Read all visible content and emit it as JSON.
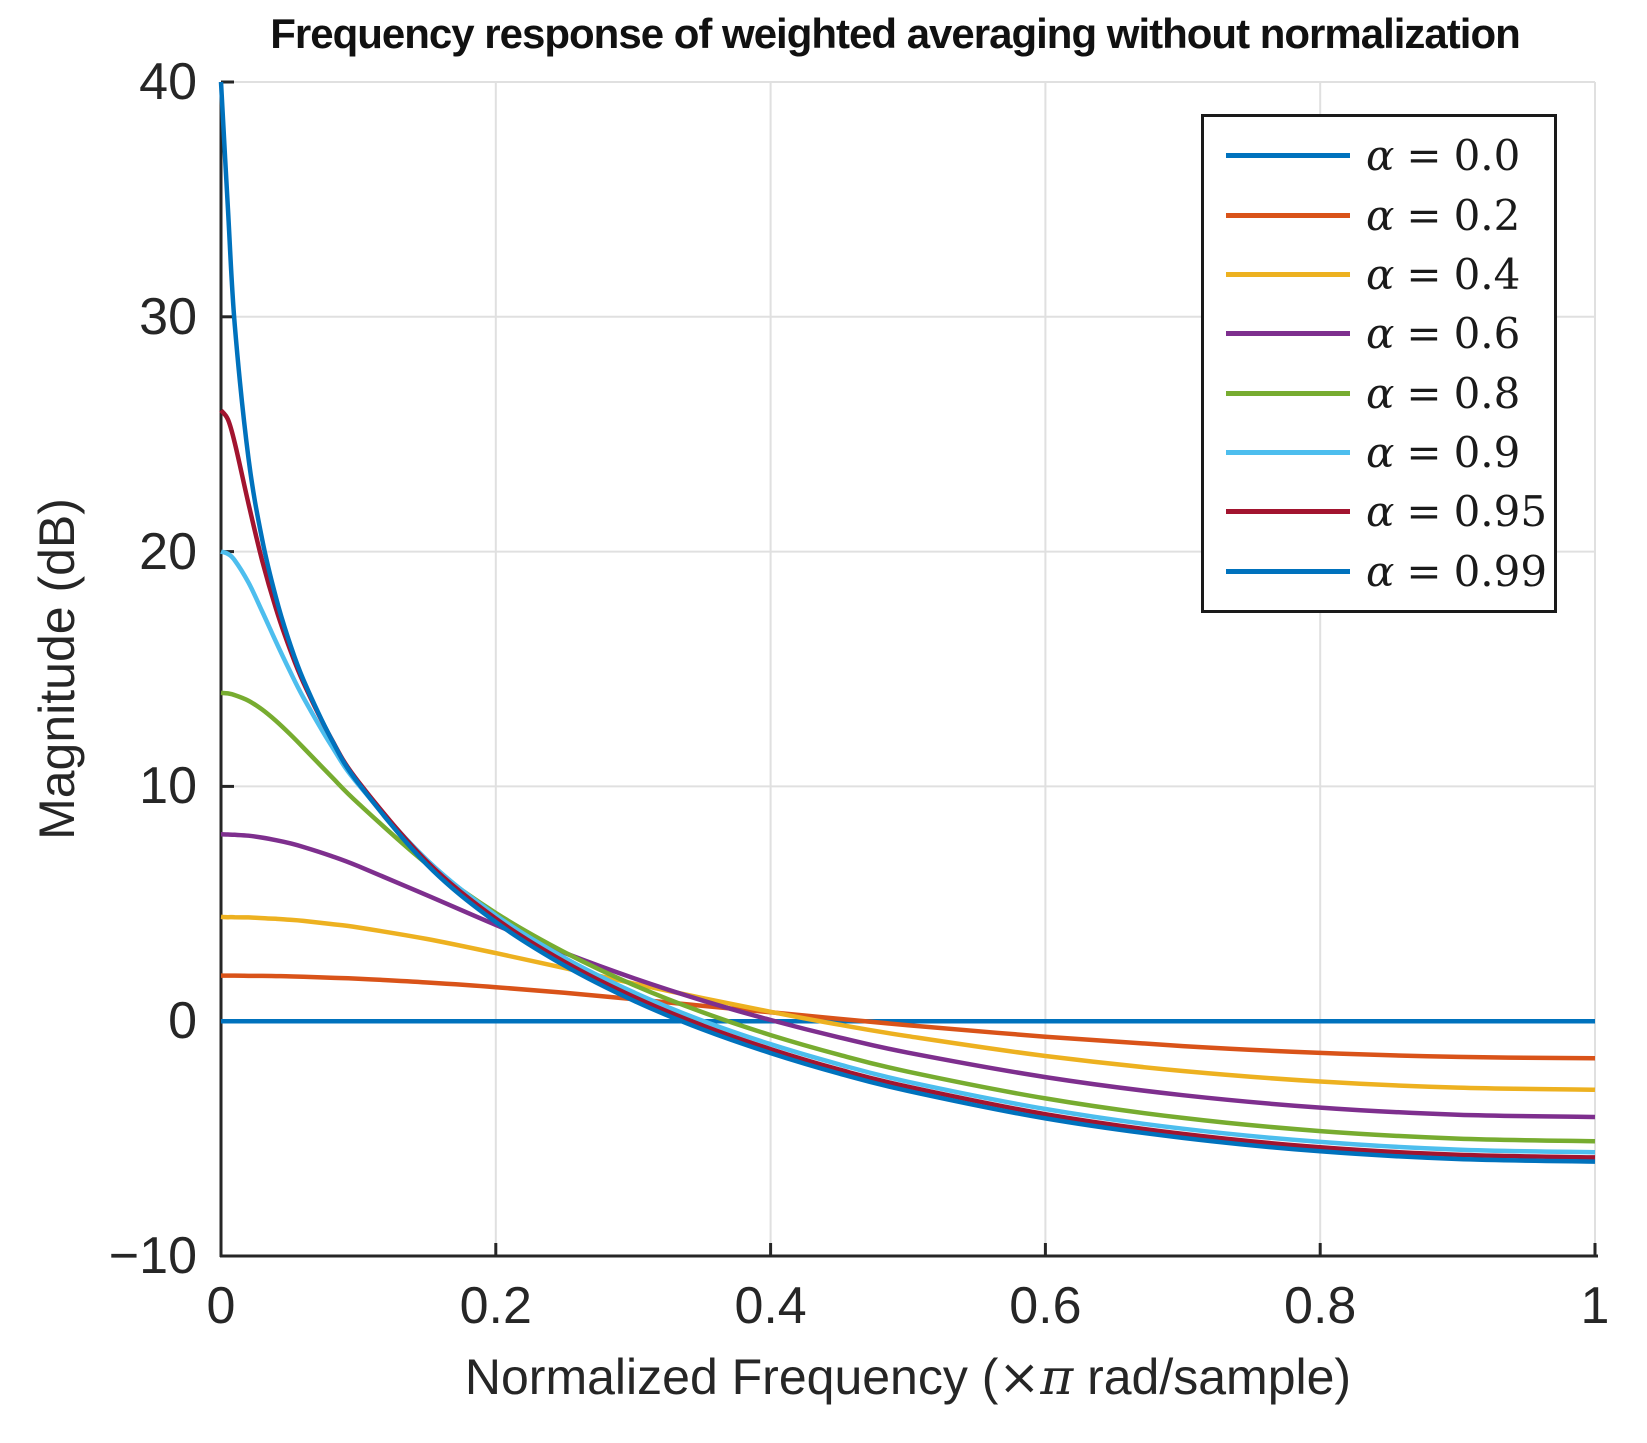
{
  "title": "Frequency response of weighted averaging without normalization",
  "axis": {
    "ylabel": "Magnitude (dB)",
    "xlabel_prefix": "Normalized Frequency (",
    "xlabel_times": "×",
    "xlabel_pi": "π",
    "xlabel_suffix": " rad/sample)",
    "x_tick_labels": [
      "0",
      "0.2",
      "0.4",
      "0.6",
      "0.8",
      "1"
    ],
    "y_tick_labels": [
      "−10",
      "0",
      "10",
      "20",
      "30",
      "40"
    ]
  },
  "legend": {
    "symbol": "α",
    "equals": "="
  },
  "style_colors": {
    "axis": "#262626",
    "grid": "#e0e0e0",
    "text": "#262626",
    "legend_border": "#1a1a1a"
  },
  "chart_data": {
    "type": "line",
    "title": "Frequency response of weighted averaging without normalization",
    "xlabel": "Normalized Frequency (×π rad/sample)",
    "ylabel": "Magnitude (dB)",
    "xlim": [
      0,
      1
    ],
    "ylim": [
      -10,
      40
    ],
    "x_ticks": [
      0,
      0.2,
      0.4,
      0.6,
      0.8,
      1
    ],
    "y_ticks": [
      -10,
      0,
      10,
      20,
      30,
      40
    ],
    "grid": "on",
    "legend_position": "top-right",
    "x": [
      0,
      0.005,
      0.01,
      0.02,
      0.03,
      0.04,
      0.05,
      0.06,
      0.08,
      0.1,
      0.15,
      0.2,
      0.25,
      0.3,
      0.35,
      0.4,
      0.45,
      0.5,
      0.6,
      0.7,
      0.8,
      0.9,
      1.0
    ],
    "series": [
      {
        "alpha": "0.0",
        "color": "#0072BD",
        "values": [
          0,
          0,
          0,
          0,
          0,
          0,
          0,
          0,
          0,
          0,
          0,
          0,
          0,
          0,
          0,
          0,
          0,
          0,
          0,
          0,
          0,
          0,
          0
        ]
      },
      {
        "alpha": "0.2",
        "color": "#D95319",
        "values": [
          1.94,
          1.94,
          1.94,
          1.93,
          1.93,
          1.92,
          1.91,
          1.89,
          1.85,
          1.81,
          1.65,
          1.45,
          1.21,
          0.94,
          0.66,
          0.38,
          0.1,
          -0.17,
          -0.66,
          -1.06,
          -1.35,
          -1.52,
          -1.58
        ]
      },
      {
        "alpha": "0.4",
        "color": "#EDB120",
        "values": [
          4.44,
          4.43,
          4.43,
          4.42,
          4.39,
          4.36,
          4.32,
          4.27,
          4.14,
          3.99,
          3.5,
          2.9,
          2.26,
          1.61,
          0.99,
          0.4,
          -0.15,
          -0.64,
          -1.48,
          -2.12,
          -2.57,
          -2.83,
          -2.92
        ]
      },
      {
        "alpha": "0.6",
        "color": "#7E2F8E",
        "values": [
          7.96,
          7.95,
          7.94,
          7.9,
          7.82,
          7.71,
          7.58,
          7.42,
          7.04,
          6.6,
          5.36,
          4.1,
          2.91,
          1.84,
          0.89,
          0.05,
          -0.69,
          -1.34,
          -2.38,
          -3.15,
          -3.68,
          -3.98,
          -4.08
        ]
      },
      {
        "alpha": "0.8",
        "color": "#77AC30",
        "values": [
          13.98,
          13.96,
          13.89,
          13.65,
          13.27,
          12.79,
          12.24,
          11.65,
          10.44,
          9.27,
          6.69,
          4.61,
          2.94,
          1.55,
          0.39,
          -0.59,
          -1.43,
          -2.15,
          -3.29,
          -4.12,
          -4.68,
          -5.0,
          -5.11
        ]
      },
      {
        "alpha": "0.9",
        "color": "#4DBEEE",
        "values": [
          20.0,
          19.9,
          19.63,
          18.68,
          17.45,
          16.16,
          14.93,
          13.78,
          11.77,
          10.08,
          6.86,
          4.51,
          2.7,
          1.24,
          0.03,
          -0.98,
          -1.84,
          -2.58,
          -3.74,
          -4.58,
          -5.14,
          -5.47,
          -5.58
        ]
      },
      {
        "alpha": "0.95",
        "color": "#A2142F",
        "values": [
          26.02,
          25.63,
          24.64,
          22.04,
          19.61,
          17.57,
          15.87,
          14.42,
          12.06,
          10.2,
          6.79,
          4.37,
          2.53,
          1.05,
          -0.17,
          -1.19,
          -2.06,
          -2.79,
          -3.96,
          -4.8,
          -5.37,
          -5.69,
          -5.8
        ]
      },
      {
        "alpha": "0.99",
        "color": "#0072BD",
        "values": [
          40.0,
          34.63,
          29.68,
          23.97,
          20.51,
          18.04,
          16.11,
          14.54,
          12.05,
          10.13,
          6.66,
          4.22,
          2.37,
          0.88,
          -0.34,
          -1.36,
          -2.23,
          -2.97,
          -4.14,
          -4.97,
          -5.54,
          -5.87,
          -5.98
        ]
      }
    ]
  }
}
